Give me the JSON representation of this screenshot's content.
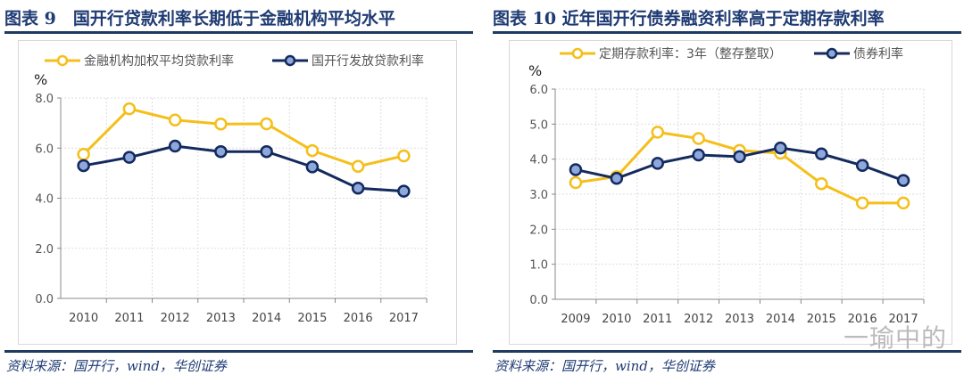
{
  "chart_data": [
    {
      "type": "line",
      "title": "图表 9　国开行贷款利率长期低于金融机构平均水平",
      "ylabel": "%",
      "ylim": [
        0,
        8
      ],
      "yticks": [
        "0.0",
        "2.0",
        "4.0",
        "6.0",
        "8.0"
      ],
      "grid": true,
      "legend": "top",
      "categories": [
        "2010",
        "2011",
        "2012",
        "2013",
        "2014",
        "2015",
        "2016",
        "2017"
      ],
      "series": [
        {
          "name": "金融机构加权平均贷款利率",
          "color": "#f5bf1a",
          "values": [
            5.75,
            7.57,
            7.12,
            6.96,
            6.97,
            5.9,
            5.27,
            5.69
          ]
        },
        {
          "name": "国开行发放贷款利率",
          "color": "#132a5e",
          "values": [
            5.3,
            5.63,
            6.08,
            5.86,
            5.86,
            5.25,
            4.4,
            4.28
          ]
        }
      ],
      "source": "资料来源：国开行，wind，华创证券"
    },
    {
      "type": "line",
      "title": "图表 10 近年国开行债券融资利率高于定期存款利率",
      "ylabel": "%",
      "ylim": [
        0,
        6
      ],
      "yticks": [
        "0.0",
        "1.0",
        "2.0",
        "3.0",
        "4.0",
        "5.0",
        "6.0"
      ],
      "grid": true,
      "legend": "top",
      "categories": [
        "2009",
        "2010",
        "2011",
        "2012",
        "2013",
        "2014",
        "2015",
        "2016",
        "2017"
      ],
      "series": [
        {
          "name": "定期存款利率：3年（整存整取）",
          "color": "#f5bf1a",
          "values": [
            3.33,
            3.5,
            4.77,
            4.59,
            4.25,
            4.17,
            3.3,
            2.75,
            2.75
          ]
        },
        {
          "name": "债券利率",
          "color": "#132a5e",
          "values": [
            3.7,
            3.45,
            3.88,
            4.12,
            4.07,
            4.32,
            4.15,
            3.82,
            3.39
          ]
        }
      ],
      "source": "资料来源：国开行，wind，华创证券"
    }
  ],
  "watermark": "一瑜中的"
}
